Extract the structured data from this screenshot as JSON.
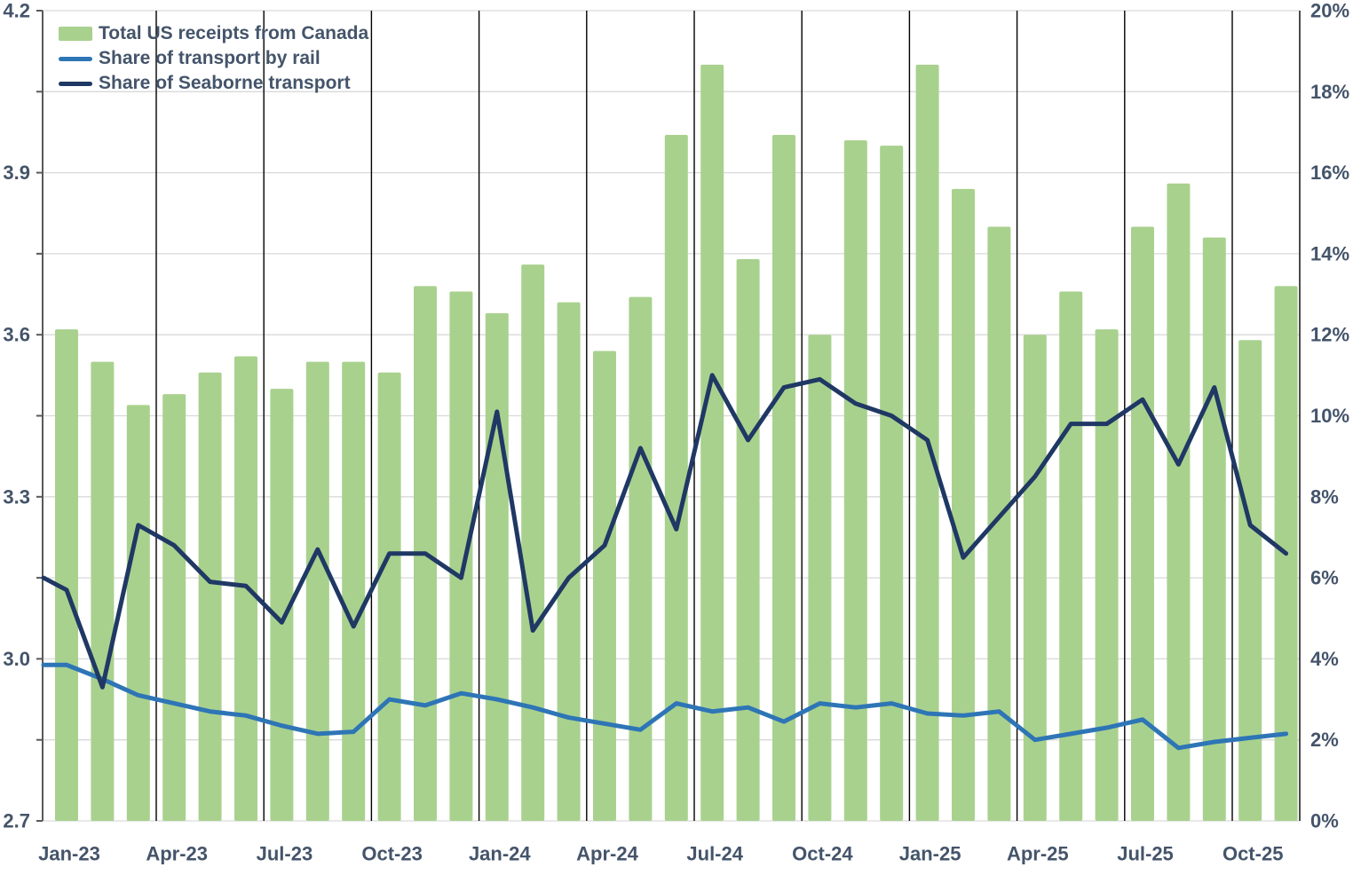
{
  "chart_data": {
    "type": "bar",
    "subtype": "combo-bar-and-lines",
    "title": "",
    "categories": [
      "Jan-23",
      "Feb-23",
      "Mar-23",
      "Apr-23",
      "May-23",
      "Jun-23",
      "Jul-23",
      "Aug-23",
      "Sep-23",
      "Oct-23",
      "Nov-23",
      "Dec-23",
      "Jan-24",
      "Feb-24",
      "Mar-24",
      "Apr-24",
      "May-24",
      "Jun-24",
      "Jul-24",
      "Aug-24",
      "Sep-24",
      "Oct-24",
      "Nov-24",
      "Dec-24",
      "Jan-25",
      "Feb-25",
      "Mar-25",
      "Apr-25",
      "May-25",
      "Jun-25",
      "Jul-25",
      "Aug-25",
      "Sep-25",
      "Oct-25",
      "Nov-25"
    ],
    "x_tick_labels": [
      "Jan-23",
      "Apr-23",
      "Jul-23",
      "Oct-23",
      "Jan-24",
      "Apr-24",
      "Jul-24",
      "Oct-24",
      "Jan-25",
      "Apr-25",
      "Jul-25",
      "Oct-25"
    ],
    "series": [
      {
        "name": "Total US receipts from Canada",
        "type": "bar",
        "axis": "left",
        "color": "#a9d18e",
        "values": [
          3.61,
          3.55,
          3.47,
          3.49,
          3.53,
          3.56,
          3.5,
          3.55,
          3.55,
          3.53,
          3.69,
          3.68,
          3.64,
          3.73,
          3.66,
          3.57,
          3.67,
          3.97,
          4.1,
          3.74,
          3.97,
          3.6,
          3.96,
          3.95,
          4.1,
          3.87,
          3.8,
          3.6,
          3.68,
          3.61,
          3.8,
          3.88,
          3.78,
          3.59,
          3.69
        ]
      },
      {
        "name": "Share of transport by rail",
        "type": "line",
        "axis": "right",
        "color": "#2e75b6",
        "edge_value": 3.85,
        "values": [
          3.85,
          3.5,
          3.1,
          2.9,
          2.7,
          2.6,
          2.35,
          2.15,
          2.2,
          3.0,
          2.85,
          3.15,
          3.0,
          2.8,
          2.55,
          2.4,
          2.25,
          2.9,
          2.7,
          2.8,
          2.45,
          2.9,
          2.8,
          2.9,
          2.65,
          2.6,
          2.7,
          2.0,
          2.15,
          2.3,
          2.5,
          1.8,
          1.95,
          2.05,
          2.15
        ]
      },
      {
        "name": "Share of Seaborne transport",
        "type": "line",
        "axis": "right",
        "color": "#1f3864",
        "edge_value": 6.0,
        "values": [
          5.7,
          3.3,
          7.3,
          6.8,
          5.9,
          5.8,
          4.9,
          6.7,
          4.8,
          6.6,
          6.6,
          6.0,
          10.1,
          4.7,
          6.0,
          6.8,
          9.2,
          7.2,
          11.0,
          9.4,
          10.7,
          10.9,
          10.3,
          10.0,
          9.4,
          6.5,
          7.5,
          8.5,
          9.8,
          9.8,
          10.4,
          8.8,
          10.7,
          7.3,
          6.6
        ]
      }
    ],
    "left_axis": {
      "min": 2.7,
      "max": 4.2,
      "tick_labels": [
        "2.7",
        "3.0",
        "3.3",
        "3.6",
        "3.9",
        "4.2"
      ]
    },
    "right_axis": {
      "min": 0,
      "max": 20,
      "tick_labels": [
        "0%",
        "2%",
        "4%",
        "6%",
        "8%",
        "10%",
        "12%",
        "14%",
        "16%",
        "18%",
        "20%"
      ]
    },
    "grid": {
      "horizontal": "on",
      "vertical_quarter_lines": "on"
    },
    "legend_position": "top-left",
    "colors": {
      "bar": "#a9d18e",
      "rail_line": "#2e75b6",
      "seaborne_line": "#1f3864",
      "text": "#44546a",
      "gridline": "#d9d9d9",
      "quarter_line": "#000000",
      "axis_line": "#595959",
      "right_border": "#000000",
      "background": "#ffffff"
    }
  }
}
